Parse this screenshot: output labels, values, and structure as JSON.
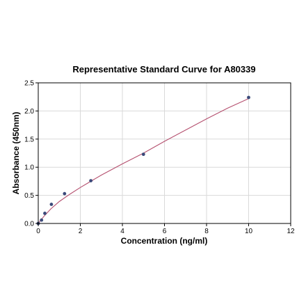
{
  "chart_data": {
    "type": "scatter",
    "title": "Representative Standard Curve for A80339",
    "xlabel": "Concentration (ng/ml)",
    "ylabel": "Absorbance (450nm)",
    "xlim": [
      0,
      12
    ],
    "ylim": [
      0,
      2.5
    ],
    "x_ticks": [
      "0",
      "2",
      "4",
      "6",
      "8",
      "10",
      "12"
    ],
    "y_ticks": [
      "0.0",
      "0.5",
      "1.0",
      "1.5",
      "2.0",
      "2.5"
    ],
    "grid": true,
    "series": [
      {
        "points": [
          {
            "x": 0.0,
            "y": 0.0
          },
          {
            "x": 0.156,
            "y": 0.06
          },
          {
            "x": 0.313,
            "y": 0.18
          },
          {
            "x": 0.625,
            "y": 0.34
          },
          {
            "x": 1.25,
            "y": 0.53
          },
          {
            "x": 2.5,
            "y": 0.76
          },
          {
            "x": 5.0,
            "y": 1.23
          },
          {
            "x": 10.0,
            "y": 2.24
          }
        ],
        "color": "#3b4a7a"
      }
    ],
    "fit_curve": {
      "x": [
        0.0,
        0.1,
        0.3,
        0.6,
        1.0,
        1.5,
        2.0,
        2.5,
        3.0,
        4.0,
        5.0,
        6.0,
        7.0,
        8.0,
        9.0,
        10.0
      ],
      "y": [
        0.0,
        0.05,
        0.14,
        0.26,
        0.39,
        0.52,
        0.64,
        0.75,
        0.86,
        1.06,
        1.25,
        1.46,
        1.66,
        1.86,
        2.05,
        2.22
      ],
      "color": "#b5506f"
    }
  }
}
